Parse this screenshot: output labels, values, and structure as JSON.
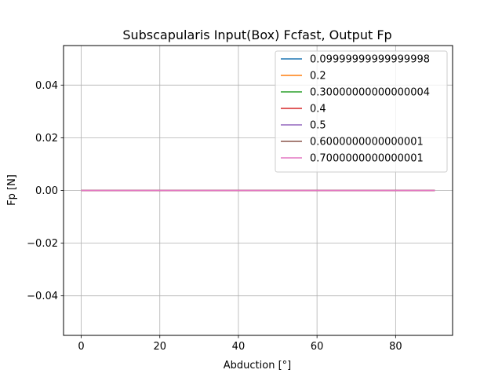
{
  "chart_data": {
    "type": "line",
    "title": "Subscapularis Input(Box) Fcfast, Output Fp",
    "xlabel": "Abduction [°]",
    "ylabel": "Fp [N]",
    "xlim": [
      -4.5,
      94.5
    ],
    "ylim": [
      -0.055,
      0.055
    ],
    "xticks": [
      0,
      20,
      40,
      60,
      80
    ],
    "xtick_labels": [
      "0",
      "20",
      "40",
      "60",
      "80"
    ],
    "yticks": [
      -0.04,
      -0.02,
      0.0,
      0.02,
      0.04
    ],
    "ytick_labels": [
      "−0.04",
      "−0.02",
      "0.00",
      "0.02",
      "0.04"
    ],
    "grid": true,
    "legend_position": "top-right",
    "x": [
      0,
      90
    ],
    "series": [
      {
        "name": "0.09999999999999998",
        "color": "#1f77b4",
        "values": [
          0,
          0
        ]
      },
      {
        "name": "0.2",
        "color": "#ff7f0e",
        "values": [
          0,
          0
        ]
      },
      {
        "name": "0.30000000000000004",
        "color": "#2ca02c",
        "values": [
          0,
          0
        ]
      },
      {
        "name": "0.4",
        "color": "#d62728",
        "values": [
          0,
          0
        ]
      },
      {
        "name": "0.5",
        "color": "#9467bd",
        "values": [
          0,
          0
        ]
      },
      {
        "name": "0.6000000000000001",
        "color": "#8c564b",
        "values": [
          0,
          0
        ]
      },
      {
        "name": "0.7000000000000001",
        "color": "#e377c2",
        "values": [
          0,
          0
        ]
      }
    ]
  }
}
